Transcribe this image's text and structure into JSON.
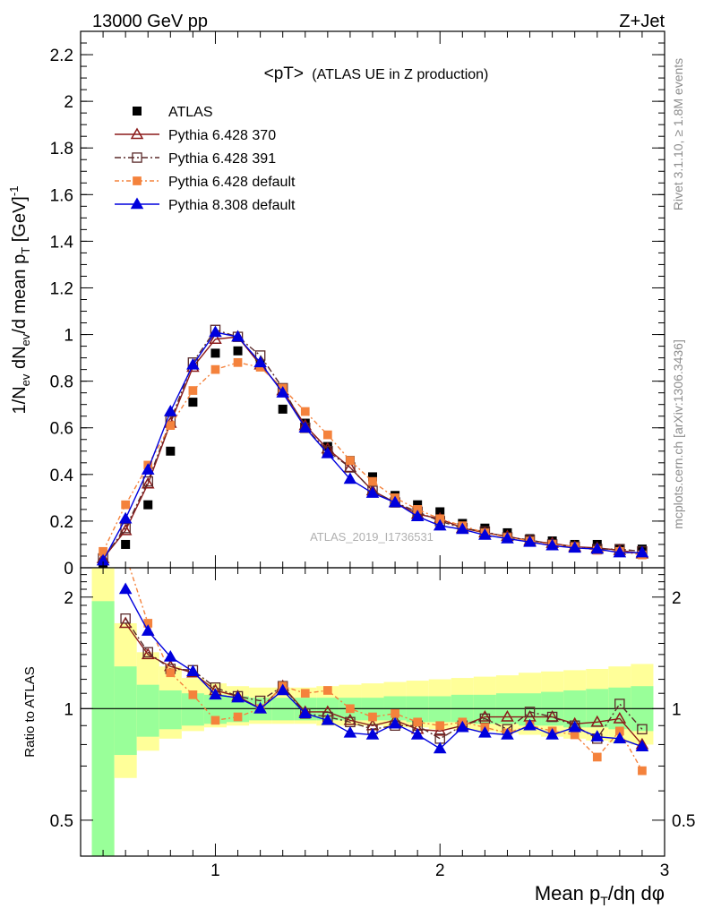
{
  "header": {
    "energy_label": "13000 GeV pp",
    "process_label": "Z+Jet"
  },
  "side": {
    "rivet_label": "Rivet 3.1.10, ≥ 1.8M events",
    "mcplots_label": "mcplots.cern.ch [arXiv:1306.3436]"
  },
  "watermark": "ATLAS_2019_I1736531",
  "colors": {
    "atlas": "#000000",
    "p370": "#8b1a1a",
    "p391": "#5a2a2a",
    "p6def": "#f4823c",
    "p8def": "#0000dd",
    "band_yellow": "#ffff99",
    "band_green": "#99ff99"
  },
  "chart_data": [
    {
      "type": "scatter",
      "title": "<pT>",
      "subtitle": "(ATLAS UE in Z production)",
      "ylabel": "1/N_ev dN_ev/d mean p_T [GeV]^-1",
      "xlim": [
        0.4,
        3.0
      ],
      "ylim": [
        0,
        2.3
      ],
      "yticks": [
        "0",
        "0.2",
        "0.4",
        "0.6",
        "0.8",
        "1",
        "1.2",
        "1.4",
        "1.6",
        "1.8",
        "2",
        "2.2"
      ],
      "x": [
        0.5,
        0.6,
        0.7,
        0.8,
        0.9,
        1.0,
        1.1,
        1.2,
        1.3,
        1.4,
        1.5,
        1.6,
        1.7,
        1.8,
        1.9,
        2.0,
        2.1,
        2.2,
        2.3,
        2.4,
        2.5,
        2.6,
        2.7,
        2.8,
        2.9
      ],
      "series": [
        {
          "name": "ATLAS",
          "key": "atlas",
          "values": [
            0.02,
            0.1,
            0.27,
            0.5,
            0.71,
            0.92,
            0.93,
            0.87,
            0.68,
            0.62,
            0.52,
            0.46,
            0.39,
            0.31,
            0.27,
            0.24,
            0.19,
            0.17,
            0.15,
            0.125,
            0.115,
            0.1,
            0.1,
            0.08,
            0.08
          ]
        },
        {
          "name": "Pythia 6.428 370",
          "key": "p370",
          "values": [
            0.04,
            0.16,
            0.36,
            0.62,
            0.86,
            0.98,
            0.99,
            0.87,
            0.76,
            0.61,
            0.51,
            0.43,
            0.33,
            0.28,
            0.23,
            0.21,
            0.17,
            0.15,
            0.135,
            0.115,
            0.105,
            0.09,
            0.085,
            0.075,
            0.06
          ]
        },
        {
          "name": "Pythia 6.428 391",
          "key": "p391",
          "values": [
            0.04,
            0.17,
            0.37,
            0.63,
            0.88,
            1.02,
            0.99,
            0.91,
            0.77,
            0.6,
            0.5,
            0.43,
            0.33,
            0.28,
            0.24,
            0.2,
            0.17,
            0.155,
            0.13,
            0.12,
            0.1,
            0.09,
            0.08,
            0.08,
            0.07
          ]
        },
        {
          "name": "Pythia 6.428 default",
          "key": "p6def",
          "values": [
            0.07,
            0.27,
            0.44,
            0.61,
            0.76,
            0.85,
            0.88,
            0.86,
            0.77,
            0.67,
            0.57,
            0.46,
            0.37,
            0.3,
            0.25,
            0.21,
            0.18,
            0.15,
            0.13,
            0.115,
            0.1,
            0.09,
            0.075,
            0.07,
            0.055
          ]
        },
        {
          "name": "Pythia 8.308 default",
          "key": "p8def",
          "values": [
            0.03,
            0.21,
            0.42,
            0.67,
            0.87,
            1.01,
            0.99,
            0.88,
            0.75,
            0.6,
            0.49,
            0.38,
            0.32,
            0.28,
            0.22,
            0.18,
            0.165,
            0.14,
            0.125,
            0.11,
            0.095,
            0.085,
            0.08,
            0.065,
            0.065
          ]
        }
      ]
    },
    {
      "type": "line",
      "ylabel": "Ratio to ATLAS",
      "xlabel": "Mean p_T/dη dφ",
      "xlim": [
        0.4,
        3.0
      ],
      "ylim": [
        0.4,
        2.4
      ],
      "log_y": true,
      "reference_line": 1,
      "xticks": [
        "1",
        "2",
        "3"
      ],
      "yticks": [
        "0.5",
        "1",
        "2"
      ],
      "x": [
        0.6,
        0.7,
        0.8,
        0.9,
        1.0,
        1.1,
        1.2,
        1.3,
        1.4,
        1.5,
        1.6,
        1.7,
        1.8,
        1.9,
        2.0,
        2.1,
        2.2,
        2.3,
        2.4,
        2.5,
        2.6,
        2.7,
        2.8,
        2.9
      ],
      "series": [
        {
          "name": "Pythia 6.428 370",
          "key": "p370",
          "values": [
            1.7,
            1.4,
            1.3,
            1.25,
            1.12,
            1.08,
            1.0,
            1.15,
            0.98,
            0.98,
            0.93,
            0.9,
            0.93,
            0.88,
            0.87,
            0.9,
            0.95,
            0.95,
            0.95,
            0.95,
            0.91,
            0.92,
            0.94,
            0.8
          ]
        },
        {
          "name": "Pythia 6.428 391",
          "key": "p391",
          "values": [
            1.75,
            1.42,
            1.28,
            1.27,
            1.14,
            1.08,
            1.05,
            1.15,
            0.97,
            0.95,
            0.92,
            0.88,
            0.9,
            0.9,
            0.83,
            0.9,
            0.94,
            0.88,
            0.98,
            0.95,
            0.9,
            0.83,
            1.03,
            0.88
          ]
        },
        {
          "name": "Pythia 6.428 default",
          "key": "p6def",
          "values": [
            2.6,
            1.7,
            1.25,
            1.09,
            0.93,
            0.95,
            1.0,
            1.15,
            1.1,
            1.12,
            1.0,
            0.95,
            0.97,
            0.92,
            0.9,
            0.92,
            0.89,
            0.86,
            0.9,
            0.87,
            0.85,
            0.74,
            0.87,
            0.68
          ]
        },
        {
          "name": "Pythia 8.308 default",
          "key": "p8def",
          "values": [
            2.1,
            1.62,
            1.38,
            1.26,
            1.09,
            1.07,
            1.0,
            1.12,
            0.97,
            0.93,
            0.86,
            0.85,
            0.91,
            0.85,
            0.78,
            0.89,
            0.86,
            0.85,
            0.9,
            0.85,
            0.89,
            0.84,
            0.83,
            0.79
          ]
        }
      ],
      "band_edges": [
        0.45,
        0.55,
        0.65,
        0.75,
        0.85,
        0.95,
        1.05,
        1.15,
        1.25,
        1.35,
        1.45,
        1.55,
        1.65,
        1.75,
        1.85,
        1.95,
        2.05,
        2.15,
        2.25,
        2.35,
        2.45,
        2.55,
        2.65,
        2.75,
        2.85,
        2.95
      ],
      "band_stat_lo": [
        0.3,
        0.75,
        0.84,
        0.88,
        0.9,
        0.91,
        0.92,
        0.93,
        0.93,
        0.93,
        0.93,
        0.93,
        0.93,
        0.93,
        0.92,
        0.92,
        0.92,
        0.91,
        0.91,
        0.9,
        0.9,
        0.89,
        0.89,
        0.88,
        0.87
      ],
      "band_stat_hi": [
        1.95,
        1.3,
        1.16,
        1.12,
        1.1,
        1.09,
        1.08,
        1.07,
        1.07,
        1.07,
        1.07,
        1.07,
        1.07,
        1.08,
        1.08,
        1.08,
        1.09,
        1.09,
        1.1,
        1.1,
        1.11,
        1.12,
        1.13,
        1.14,
        1.15
      ],
      "band_tot_lo": [
        0.3,
        0.65,
        0.77,
        0.83,
        0.87,
        0.89,
        0.9,
        0.91,
        0.91,
        0.91,
        0.9,
        0.9,
        0.9,
        0.89,
        0.89,
        0.88,
        0.88,
        0.87,
        0.86,
        0.85,
        0.84,
        0.83,
        0.82,
        0.81,
        0.8
      ],
      "band_tot_hi": [
        2.5,
        1.7,
        1.42,
        1.3,
        1.21,
        1.17,
        1.15,
        1.14,
        1.14,
        1.14,
        1.15,
        1.16,
        1.17,
        1.18,
        1.19,
        1.2,
        1.21,
        1.22,
        1.23,
        1.25,
        1.26,
        1.27,
        1.28,
        1.3,
        1.32
      ]
    }
  ]
}
